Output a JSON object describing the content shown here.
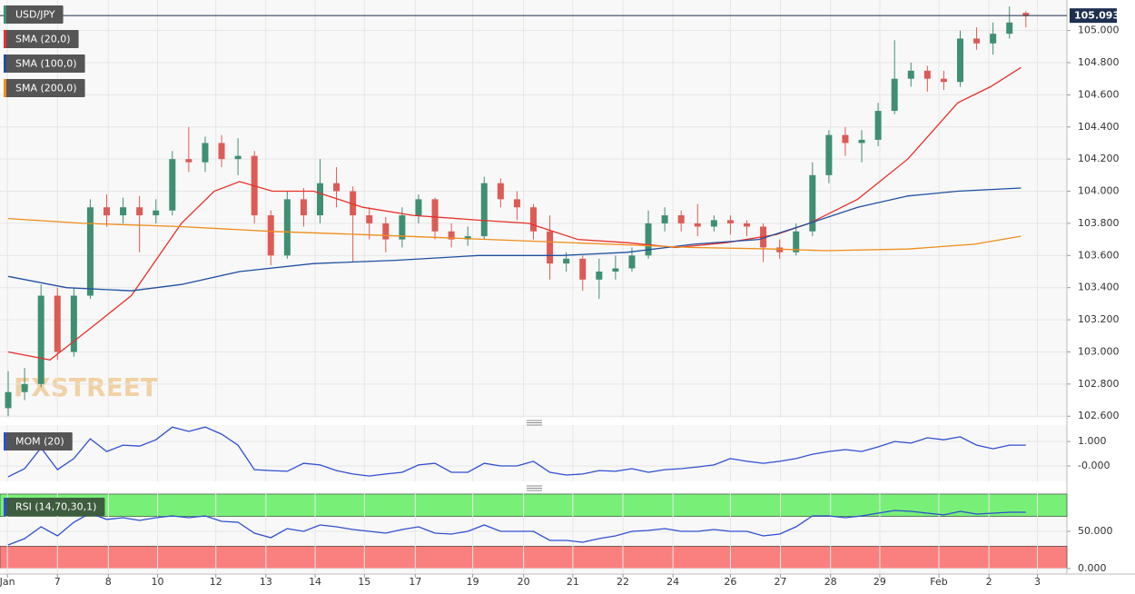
{
  "chart_data": [
    {
      "type": "candlestick",
      "title": "USD/JPY",
      "watermark": "FXSTREET",
      "x": [
        0,
        2,
        4,
        6,
        8,
        10,
        12,
        14,
        16,
        18,
        20,
        22,
        24,
        26,
        28,
        30,
        32,
        34,
        36,
        38,
        40,
        42,
        44,
        46,
        48,
        50,
        52,
        54,
        56,
        58,
        60,
        62,
        64,
        66,
        68,
        70,
        72,
        74,
        76,
        78,
        80,
        82,
        84,
        86,
        88,
        90,
        92,
        94,
        96,
        98,
        100,
        102,
        104,
        106,
        108,
        110,
        112,
        114,
        116,
        118,
        120,
        122,
        124
      ],
      "open": [
        102.65,
        102.75,
        102.8,
        103.35,
        103.0,
        103.35,
        103.9,
        103.85,
        103.9,
        103.85,
        103.88,
        104.2,
        104.18,
        104.3,
        104.2,
        104.22,
        103.85,
        103.6,
        103.95,
        103.85,
        104.05,
        104.0,
        103.85,
        103.8,
        103.7,
        103.85,
        103.95,
        103.75,
        103.7,
        103.72,
        104.05,
        103.95,
        103.9,
        103.75,
        103.55,
        103.58,
        103.45,
        103.5,
        103.52,
        103.6,
        103.8,
        103.85,
        103.8,
        103.78,
        103.82,
        103.8,
        103.78,
        103.65,
        103.62,
        103.75,
        104.1,
        104.35,
        104.3,
        104.32,
        104.5,
        104.7,
        104.75,
        104.7,
        104.68,
        104.95,
        104.92,
        104.98,
        105.11
      ],
      "high": [
        102.88,
        102.9,
        103.42,
        103.4,
        103.4,
        103.95,
        103.98,
        103.96,
        103.97,
        103.95,
        104.25,
        104.4,
        104.34,
        104.35,
        104.33,
        104.25,
        103.88,
        104.0,
        104.02,
        104.2,
        104.15,
        104.03,
        103.9,
        103.84,
        103.9,
        103.98,
        103.96,
        103.8,
        103.78,
        104.09,
        104.08,
        104.0,
        103.92,
        103.85,
        103.62,
        103.6,
        103.58,
        103.6,
        103.65,
        103.88,
        103.9,
        103.88,
        103.92,
        103.85,
        103.85,
        103.82,
        103.8,
        103.7,
        103.8,
        104.18,
        104.38,
        104.4,
        104.38,
        104.55,
        104.94,
        104.8,
        104.78,
        104.75,
        105.0,
        105.02,
        105.05,
        105.15,
        105.12
      ],
      "low": [
        102.6,
        102.7,
        102.78,
        102.95,
        102.97,
        103.33,
        103.78,
        103.8,
        103.62,
        103.8,
        103.85,
        104.12,
        104.12,
        104.15,
        104.1,
        103.8,
        103.54,
        103.58,
        103.78,
        103.8,
        103.9,
        103.56,
        103.7,
        103.62,
        103.65,
        103.8,
        103.7,
        103.65,
        103.66,
        103.7,
        103.9,
        103.82,
        103.7,
        103.45,
        103.5,
        103.38,
        103.33,
        103.45,
        103.5,
        103.58,
        103.75,
        103.75,
        103.72,
        103.75,
        103.73,
        103.72,
        103.56,
        103.58,
        103.6,
        103.72,
        104.05,
        104.22,
        104.18,
        104.28,
        104.48,
        104.65,
        104.62,
        104.63,
        104.65,
        104.88,
        104.85,
        104.95,
        105.02
      ],
      "close": [
        102.75,
        102.8,
        103.35,
        103.0,
        103.35,
        103.9,
        103.85,
        103.9,
        103.85,
        103.88,
        104.2,
        104.18,
        104.3,
        104.2,
        104.22,
        103.85,
        103.6,
        103.95,
        103.85,
        104.05,
        104.0,
        103.85,
        103.8,
        103.7,
        103.85,
        103.95,
        103.75,
        103.7,
        103.72,
        104.05,
        103.95,
        103.9,
        103.75,
        103.55,
        103.58,
        103.45,
        103.5,
        103.52,
        103.6,
        103.8,
        103.85,
        103.8,
        103.78,
        103.82,
        103.8,
        103.78,
        103.65,
        103.62,
        103.75,
        104.1,
        104.35,
        104.3,
        104.32,
        104.5,
        104.7,
        104.75,
        104.7,
        104.68,
        104.95,
        104.92,
        104.98,
        105.05,
        105.09
      ],
      "up_color": "#3f8f72",
      "down_color": "#dd5b55",
      "series": [
        {
          "name": "SMA (20,0)",
          "color": "#e8302a",
          "x": [
            0,
            5.1,
            10.1,
            15,
            21.1,
            25.1,
            28.2,
            32.2,
            37.2,
            43.2,
            49.3,
            57.3,
            63.4,
            69.4,
            75.4,
            81.4,
            87.5,
            93.6,
            97.6,
            103.5,
            109.6,
            115.7,
            119.7,
            123.4
          ],
          "values": [
            103.0,
            102.95,
            103.15,
            103.35,
            103.8,
            104.0,
            104.06,
            104.0,
            104.0,
            103.9,
            103.85,
            103.82,
            103.8,
            103.7,
            103.68,
            103.65,
            103.68,
            103.73,
            103.8,
            103.95,
            104.2,
            104.55,
            104.65,
            104.77
          ]
        },
        {
          "name": "SMA (100,0)",
          "color": "#1f4fa0",
          "x": [
            0,
            7.1,
            15,
            21.1,
            28.2,
            37.2,
            47.2,
            57.3,
            67.4,
            75.4,
            83.5,
            91.5,
            97.6,
            103.5,
            109.6,
            115.7,
            123.4
          ],
          "values": [
            103.47,
            103.4,
            103.38,
            103.42,
            103.5,
            103.55,
            103.57,
            103.6,
            103.6,
            103.62,
            103.67,
            103.7,
            103.8,
            103.9,
            103.97,
            104.0,
            104.02
          ]
        },
        {
          "name": "SMA (200,0)",
          "color": "#f08c1a",
          "x": [
            0,
            9.1,
            21.1,
            32.2,
            43.2,
            53.3,
            63.4,
            73.4,
            83.5,
            93.6,
            99.6,
            109.6,
            117.7,
            123.4
          ],
          "values": [
            103.83,
            103.8,
            103.78,
            103.75,
            103.73,
            103.71,
            103.69,
            103.67,
            103.65,
            103.64,
            103.63,
            103.64,
            103.67,
            103.72
          ]
        }
      ],
      "last_price": 105.093,
      "xlim": [
        -1,
        129
      ],
      "xticks": [
        {
          "value": -0.1,
          "label": "Jan"
        },
        {
          "value": 6.0,
          "label": "7"
        },
        {
          "value": 12.2,
          "label": "8"
        },
        {
          "value": 18.2,
          "label": "10"
        },
        {
          "value": 25.3,
          "label": "12"
        },
        {
          "value": 31.4,
          "label": "13"
        },
        {
          "value": 37.4,
          "label": "14"
        },
        {
          "value": 43.4,
          "label": "15"
        },
        {
          "value": 49.6,
          "label": "17"
        },
        {
          "value": 56.6,
          "label": "19"
        },
        {
          "value": 62.8,
          "label": "20"
        },
        {
          "value": 68.8,
          "label": "21"
        },
        {
          "value": 74.9,
          "label": "22"
        },
        {
          "value": 81.0,
          "label": "24"
        },
        {
          "value": 88.0,
          "label": "26"
        },
        {
          "value": 94.1,
          "label": "27"
        },
        {
          "value": 100.2,
          "label": "28"
        },
        {
          "value": 106.2,
          "label": "29"
        },
        {
          "value": 113.4,
          "label": "Feb"
        },
        {
          "value": 119.5,
          "label": "2"
        },
        {
          "value": 125.4,
          "label": "3"
        }
      ],
      "ylim": [
        102.59,
        105.19
      ],
      "yticks": [
        {
          "value": 102.6,
          "label": "102.600"
        },
        {
          "value": 102.8,
          "label": "102.800"
        },
        {
          "value": 103.0,
          "label": "103.000"
        },
        {
          "value": 103.2,
          "label": "103.200"
        },
        {
          "value": 103.4,
          "label": "103.400"
        },
        {
          "value": 103.6,
          "label": "103.600"
        },
        {
          "value": 103.8,
          "label": "103.800"
        },
        {
          "value": 104.0,
          "label": "104.000"
        },
        {
          "value": 104.2,
          "label": "104.200"
        },
        {
          "value": 104.4,
          "label": "104.400"
        },
        {
          "value": 104.6,
          "label": "104.600"
        },
        {
          "value": 104.8,
          "label": "104.800"
        },
        {
          "value": 105.0,
          "label": "105.000"
        }
      ],
      "grid": true
    },
    {
      "type": "line",
      "series": [
        {
          "name": "MOM (20)",
          "color": "#2f4fd0",
          "x": [
            0,
            2,
            4,
            6,
            8,
            10,
            12,
            14,
            16,
            18,
            20,
            22,
            24,
            26,
            28,
            30,
            32,
            34,
            36,
            38,
            40,
            42,
            44,
            46,
            48,
            50,
            52,
            54,
            56,
            58,
            60,
            62,
            64,
            66,
            68,
            70,
            72,
            74,
            76,
            78,
            80,
            82,
            84,
            86,
            88,
            90,
            92,
            94,
            96,
            98,
            100,
            102,
            104,
            106,
            108,
            110,
            112,
            114,
            116,
            118,
            120,
            122,
            124
          ],
          "values": [
            -0.44,
            -0.11,
            0.74,
            -0.15,
            0.3,
            1.11,
            0.59,
            0.85,
            0.81,
            1.07,
            1.59,
            1.41,
            1.59,
            1.3,
            0.85,
            -0.15,
            -0.19,
            -0.22,
            0.11,
            0.04,
            -0.19,
            -0.33,
            -0.41,
            -0.33,
            -0.26,
            0.04,
            0.11,
            -0.26,
            -0.26,
            0.11,
            0,
            0,
            0.19,
            -0.26,
            -0.37,
            -0.33,
            -0.19,
            -0.22,
            -0.11,
            -0.26,
            -0.15,
            -0.11,
            -0.04,
            0.04,
            0.3,
            0.19,
            0.11,
            0.19,
            0.3,
            0.48,
            0.59,
            0.67,
            0.59,
            0.78,
            1.0,
            0.93,
            1.15,
            1.07,
            1.19,
            0.85,
            0.7,
            0.85,
            0.85
          ]
        }
      ],
      "ylim": [
        -0.63,
        1.67
      ],
      "yticks": [
        {
          "value": 1,
          "label": "1.000"
        },
        {
          "value": 0,
          "label": "-0.000"
        }
      ],
      "grid": true
    },
    {
      "type": "line",
      "series": [
        {
          "name": "RSI (14,70,30,1)",
          "color": "#2f4fd0",
          "x": [
            0,
            2,
            4,
            6,
            8,
            10,
            12,
            14,
            16,
            18,
            20,
            22,
            24,
            26,
            28,
            30,
            32,
            34,
            36,
            38,
            40,
            42,
            44,
            46,
            48,
            50,
            52,
            54,
            56,
            58,
            60,
            62,
            64,
            66,
            68,
            70,
            72,
            74,
            76,
            78,
            80,
            82,
            84,
            86,
            88,
            90,
            92,
            94,
            96,
            98,
            100,
            102,
            104,
            106,
            108,
            110,
            112,
            114,
            116,
            118,
            120,
            122,
            124
          ],
          "values": [
            31.7,
            40.2,
            56.1,
            43.9,
            62.2,
            74.4,
            65.9,
            68.3,
            64.6,
            68.3,
            70.7,
            68.3,
            70.7,
            63.4,
            62.2,
            47.6,
            41.5,
            53.7,
            50.0,
            58.5,
            56.1,
            52.4,
            50.0,
            47.6,
            52.4,
            56.1,
            47.6,
            46.3,
            50.0,
            58.5,
            50.0,
            50.0,
            50.0,
            37.8,
            37.8,
            35.4,
            40.2,
            43.9,
            50.0,
            51.2,
            53.7,
            50.0,
            50.0,
            52.4,
            50.0,
            50.0,
            43.9,
            46.3,
            56.1,
            70.7,
            70.7,
            68.3,
            70.7,
            74.4,
            78.0,
            76.8,
            74.4,
            72.0,
            76.8,
            73.2,
            74.4,
            75.6,
            75.6
          ]
        }
      ],
      "bands": [
        {
          "range": [
            70,
            100
          ],
          "color": "#78f078"
        },
        {
          "range": [
            0,
            30
          ],
          "color": "#fa8080"
        }
      ],
      "ylim": [
        -7.3,
        102.4
      ],
      "yticks": [
        {
          "value": 50,
          "label": "50.000"
        },
        {
          "value": 0,
          "label": "0.000"
        }
      ],
      "grid": true
    }
  ]
}
